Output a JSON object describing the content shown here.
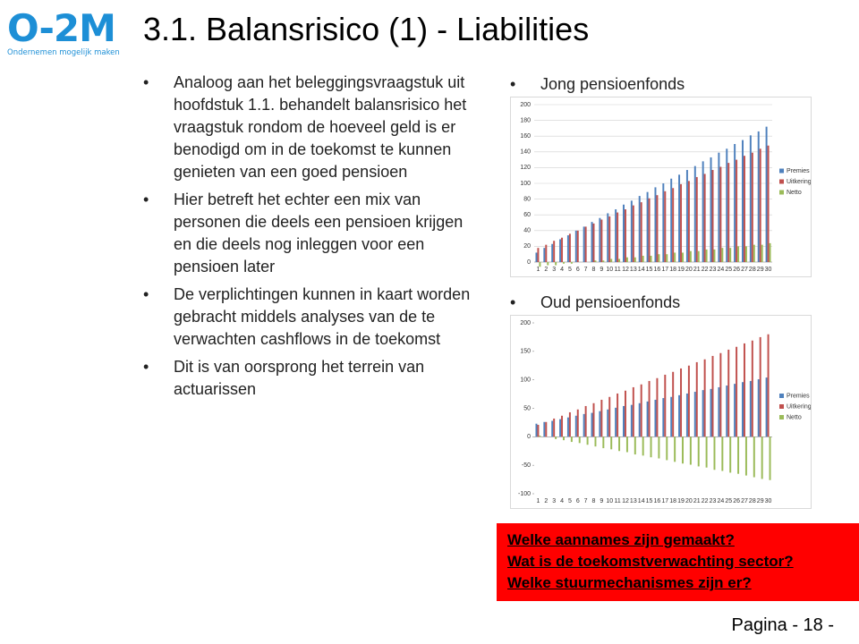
{
  "logo": {
    "text": "O-2M",
    "tagline": "Ondernemen mogelijk maken"
  },
  "title": "3.1. Balansrisico (1) - Liabilities",
  "bullets": [
    "Analoog aan het beleggingsvraagstuk uit hoofdstuk 1.1. behandelt balansrisico het vraagstuk rondom de hoeveel geld is er benodigd om in de toekomst te kunnen genieten van een goed pensioen",
    "Hier betreft het echter een mix van personen die deels een pensioen krijgen en die deels nog inleggen voor een pensioen later",
    "De verplichtingen kunnen in kaart worden gebracht middels analyses van de te verwachten cashflows in de toekomst",
    "Dit is van oorsprong het terrein van actuarissen"
  ],
  "chart_headings": [
    "Jong pensioenfonds",
    "Oud pensioenfonds"
  ],
  "chart_data": [
    {
      "type": "bar",
      "categories": [
        1,
        2,
        3,
        4,
        5,
        6,
        7,
        8,
        9,
        10,
        11,
        12,
        13,
        14,
        15,
        16,
        17,
        18,
        19,
        20,
        21,
        22,
        23,
        24,
        25,
        26,
        27,
        28,
        29,
        30
      ],
      "series": [
        {
          "name": "Premies",
          "color": "#4f81bd",
          "values": [
            12,
            18,
            23,
            29,
            34,
            40,
            45,
            51,
            56,
            62,
            67,
            73,
            78,
            84,
            89,
            95,
            100,
            106,
            111,
            117,
            122,
            128,
            133,
            139,
            144,
            150,
            155,
            161,
            166,
            172
          ]
        },
        {
          "name": "Uitkeringen",
          "color": "#c0504d",
          "values": [
            18,
            22,
            27,
            31,
            36,
            40,
            45,
            49,
            54,
            58,
            63,
            67,
            72,
            76,
            81,
            85,
            90,
            94,
            99,
            103,
            108,
            112,
            117,
            121,
            126,
            130,
            135,
            139,
            144,
            148
          ]
        },
        {
          "name": "Netto",
          "color": "#9bbb59",
          "values": [
            -6,
            -4,
            -4,
            -2,
            -2,
            0,
            0,
            2,
            2,
            4,
            4,
            6,
            6,
            8,
            8,
            10,
            10,
            12,
            12,
            14,
            14,
            16,
            16,
            18,
            18,
            20,
            20,
            22,
            22,
            24
          ]
        }
      ],
      "ylim": [
        0,
        200
      ],
      "yticks": [
        0,
        20,
        40,
        60,
        80,
        100,
        120,
        140,
        160,
        180,
        200
      ],
      "grid": true,
      "legend": "right"
    },
    {
      "type": "bar",
      "categories": [
        1,
        2,
        3,
        4,
        5,
        6,
        7,
        8,
        9,
        10,
        11,
        12,
        13,
        14,
        15,
        16,
        17,
        18,
        19,
        20,
        21,
        22,
        23,
        24,
        25,
        26,
        27,
        28,
        29,
        30
      ],
      "series": [
        {
          "name": "Premies",
          "color": "#4f81bd",
          "values": [
            23,
            26,
            28,
            31,
            34,
            37,
            40,
            42,
            45,
            48,
            51,
            54,
            56,
            59,
            62,
            65,
            68,
            70,
            73,
            76,
            79,
            82,
            84,
            87,
            90,
            93,
            96,
            98,
            101,
            104
          ]
        },
        {
          "name": "Uitkeringen",
          "color": "#c0504d",
          "values": [
            21,
            26,
            32,
            37,
            43,
            48,
            54,
            59,
            65,
            70,
            76,
            81,
            87,
            92,
            98,
            103,
            109,
            114,
            120,
            125,
            131,
            136,
            142,
            147,
            153,
            158,
            164,
            169,
            175,
            180
          ]
        },
        {
          "name": "Netto",
          "color": "#9bbb59",
          "values": [
            2,
            0,
            -4,
            -6,
            -9,
            -11,
            -14,
            -17,
            -20,
            -22,
            -25,
            -27,
            -31,
            -33,
            -36,
            -38,
            -41,
            -44,
            -47,
            -49,
            -52,
            -54,
            -58,
            -60,
            -63,
            -65,
            -68,
            -71,
            -74,
            -76
          ]
        }
      ],
      "ylim": [
        -100,
        200
      ],
      "yticks": [
        -100,
        -50,
        0,
        50,
        100,
        150,
        200
      ],
      "grid": false,
      "legend": "right"
    }
  ],
  "callout": [
    "Welke aannames zijn gemaakt?",
    "Wat is de toekomstverwachting sector?",
    "Welke stuurmechanismes zijn er?"
  ],
  "footer": "Pagina - 18 -"
}
